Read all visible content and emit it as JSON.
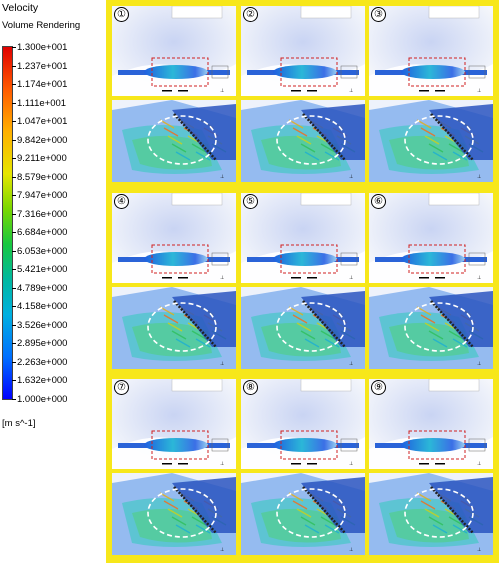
{
  "legend": {
    "title": "Velocity",
    "subtitle": "Volume Rendering",
    "unit": "[m s^-1]",
    "ticks": [
      "1.300e+001",
      "1.237e+001",
      "1.174e+001",
      "1.111e+001",
      "1.047e+001",
      "9.842e+000",
      "9.211e+000",
      "8.579e+000",
      "7.947e+000",
      "7.316e+000",
      "6.684e+000",
      "6.053e+000",
      "5.421e+000",
      "4.789e+000",
      "4.158e+000",
      "3.526e+000",
      "2.895e+000",
      "2.263e+000",
      "1.632e+000",
      "1.000e+000"
    ]
  },
  "panels": [
    {
      "label": "①"
    },
    {
      "label": "②"
    },
    {
      "label": "③"
    },
    {
      "label": "④"
    },
    {
      "label": "⑤"
    },
    {
      "label": "⑥"
    },
    {
      "label": "⑦"
    },
    {
      "label": "⑧"
    },
    {
      "label": "⑨"
    }
  ]
}
